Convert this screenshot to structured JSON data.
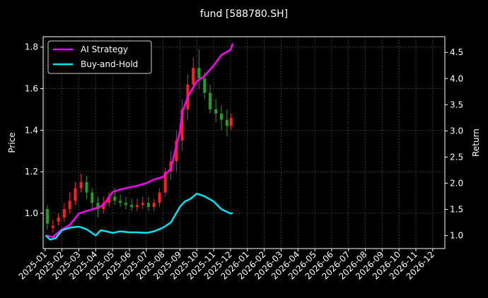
{
  "chart_data": {
    "type": "line",
    "title": "fund [588780.SH]",
    "ylabel_left": "Price",
    "ylabel_right": "Return",
    "xlim": [
      "2025-01",
      "2026-12"
    ],
    "ylim_left": [
      0.83,
      1.85
    ],
    "ylim_right": [
      0.75,
      4.8
    ],
    "x_tick_labels": [
      "2025-01",
      "2025-02",
      "2025-03",
      "2025-04",
      "2025-05",
      "2025-06",
      "2025-07",
      "2025-08",
      "2025-09",
      "2025-10",
      "2025-11",
      "2025-12",
      "2026-01",
      "2026-02",
      "2026-03",
      "2026-04",
      "2026-05",
      "2026-06",
      "2026-07",
      "2026-08",
      "2026-09",
      "2026-10",
      "2026-11",
      "2026-12"
    ],
    "y_ticks_left": [
      "1.0",
      "1.2",
      "1.4",
      "1.6",
      "1.8"
    ],
    "y_ticks_right": [
      "1.0",
      "1.5",
      "2.0",
      "2.5",
      "3.0",
      "3.5",
      "4.0",
      "4.5"
    ],
    "legend_position": "top-left",
    "grid": true,
    "colors": {
      "background": "#000000",
      "ai_strategy": "#ff00ff",
      "buy_and_hold": "#00e5ee",
      "candle_up": "#ff2020",
      "candle_down": "#1fa01f",
      "grid": "#555555"
    },
    "series": [
      {
        "name": "AI Strategy",
        "axis": "right",
        "x": [
          "2025-01-02",
          "2025-01-15",
          "2025-02-01",
          "2025-02-15",
          "2025-03-01",
          "2025-03-15",
          "2025-04-01",
          "2025-04-15",
          "2025-05-01",
          "2025-05-15",
          "2025-06-01",
          "2025-06-15",
          "2025-07-01",
          "2025-07-15",
          "2025-08-01",
          "2025-08-15",
          "2025-09-01",
          "2025-09-05",
          "2025-09-15",
          "2025-10-01",
          "2025-10-15",
          "2025-11-01",
          "2025-11-15",
          "2025-12-01",
          "2025-12-05"
        ],
        "values": [
          1.0,
          0.97,
          1.12,
          1.2,
          1.42,
          1.47,
          1.52,
          1.58,
          1.83,
          1.88,
          1.92,
          1.95,
          2.0,
          2.07,
          2.12,
          2.28,
          3.0,
          3.35,
          3.65,
          3.95,
          4.05,
          4.25,
          4.45,
          4.55,
          4.67
        ]
      },
      {
        "name": "Buy-and-Hold",
        "axis": "right",
        "x": [
          "2025-01-02",
          "2025-01-10",
          "2025-01-20",
          "2025-02-01",
          "2025-02-15",
          "2025-03-01",
          "2025-03-15",
          "2025-04-01",
          "2025-04-10",
          "2025-04-20",
          "2025-05-01",
          "2025-05-15",
          "2025-06-01",
          "2025-06-15",
          "2025-07-01",
          "2025-07-15",
          "2025-08-01",
          "2025-08-15",
          "2025-09-01",
          "2025-09-10",
          "2025-09-20",
          "2025-10-01",
          "2025-10-15",
          "2025-11-01",
          "2025-11-15",
          "2025-12-01",
          "2025-12-05"
        ],
        "values": [
          1.0,
          0.92,
          0.95,
          1.1,
          1.15,
          1.17,
          1.12,
          1.0,
          1.1,
          1.08,
          1.05,
          1.08,
          1.06,
          1.06,
          1.05,
          1.08,
          1.15,
          1.25,
          1.55,
          1.65,
          1.7,
          1.8,
          1.75,
          1.65,
          1.5,
          1.42,
          1.43
        ]
      }
    ],
    "candlestick": {
      "name": "Price",
      "axis": "left",
      "x": [
        "2025-01-05",
        "2025-01-15",
        "2025-01-25",
        "2025-02-05",
        "2025-02-15",
        "2025-02-25",
        "2025-03-05",
        "2025-03-15",
        "2025-03-25",
        "2025-04-05",
        "2025-04-15",
        "2025-04-25",
        "2025-05-05",
        "2025-05-15",
        "2025-05-25",
        "2025-06-05",
        "2025-06-15",
        "2025-06-25",
        "2025-07-05",
        "2025-07-15",
        "2025-07-25",
        "2025-08-05",
        "2025-08-15",
        "2025-08-25",
        "2025-09-05",
        "2025-09-15",
        "2025-09-25",
        "2025-10-05",
        "2025-10-15",
        "2025-10-25",
        "2025-11-05",
        "2025-11-15",
        "2025-11-25",
        "2025-12-02"
      ],
      "open": [
        1.02,
        0.93,
        0.96,
        0.98,
        1.02,
        1.06,
        1.12,
        1.15,
        1.1,
        1.05,
        1.02,
        1.05,
        1.08,
        1.06,
        1.05,
        1.04,
        1.03,
        1.04,
        1.05,
        1.03,
        1.05,
        1.1,
        1.2,
        1.25,
        1.35,
        1.5,
        1.62,
        1.7,
        1.65,
        1.58,
        1.5,
        1.48,
        1.45,
        1.42
      ],
      "close": [
        0.95,
        0.94,
        0.98,
        1.02,
        1.06,
        1.12,
        1.15,
        1.1,
        1.05,
        1.02,
        1.05,
        1.08,
        1.06,
        1.05,
        1.04,
        1.03,
        1.04,
        1.05,
        1.03,
        1.05,
        1.1,
        1.2,
        1.25,
        1.35,
        1.5,
        1.62,
        1.7,
        1.65,
        1.58,
        1.5,
        1.48,
        1.45,
        1.42,
        1.46
      ],
      "high": [
        1.04,
        0.97,
        1.0,
        1.05,
        1.1,
        1.15,
        1.19,
        1.18,
        1.12,
        1.08,
        1.08,
        1.1,
        1.12,
        1.09,
        1.08,
        1.07,
        1.07,
        1.08,
        1.08,
        1.07,
        1.12,
        1.22,
        1.3,
        1.4,
        1.55,
        1.67,
        1.75,
        1.79,
        1.68,
        1.62,
        1.55,
        1.52,
        1.5,
        1.48
      ],
      "low": [
        0.92,
        0.91,
        0.94,
        0.96,
        1.0,
        1.04,
        1.1,
        1.07,
        1.02,
        0.98,
        1.0,
        1.03,
        1.04,
        1.03,
        1.02,
        1.01,
        1.01,
        1.02,
        1.01,
        1.01,
        1.03,
        1.08,
        1.16,
        1.2,
        1.3,
        1.45,
        1.58,
        1.6,
        1.55,
        1.48,
        1.44,
        1.4,
        1.37,
        1.4
      ]
    }
  }
}
